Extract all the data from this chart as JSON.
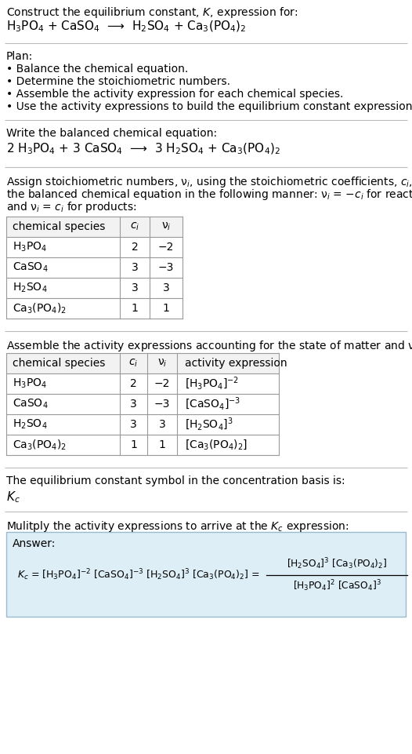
{
  "title_line1": "Construct the equilibrium constant, $K$, expression for:",
  "title_line2": "H$_3$PO$_4$ + CaSO$_4$  ⟶  H$_2$SO$_4$ + Ca$_3$(PO$_4$)$_2$",
  "plan_header": "Plan:",
  "plan_items": [
    "• Balance the chemical equation.",
    "• Determine the stoichiometric numbers.",
    "• Assemble the activity expression for each chemical species.",
    "• Use the activity expressions to build the equilibrium constant expression."
  ],
  "balanced_header": "Write the balanced chemical equation:",
  "balanced_eq": "2 H$_3$PO$_4$ + 3 CaSO$_4$  ⟶  3 H$_2$SO$_4$ + Ca$_3$(PO$_4$)$_2$",
  "stoich_header_parts": [
    "Assign stoichiometric numbers, ν$_i$, using the stoichiometric coefficients, $c_i$, from",
    "the balanced chemical equation in the following manner: ν$_i$ = −$c_i$ for reactants",
    "and ν$_i$ = $c_i$ for products:"
  ],
  "table1_headers": [
    "chemical species",
    "$c_i$",
    "ν$_i$"
  ],
  "table1_rows": [
    [
      "H$_3$PO$_4$",
      "2",
      "−2"
    ],
    [
      "CaSO$_4$",
      "3",
      "−3"
    ],
    [
      "H$_2$SO$_4$",
      "3",
      "3"
    ],
    [
      "Ca$_3$(PO$_4$)$_2$",
      "1",
      "1"
    ]
  ],
  "activity_header": "Assemble the activity expressions accounting for the state of matter and ν$_i$:",
  "table2_headers": [
    "chemical species",
    "$c_i$",
    "ν$_i$",
    "activity expression"
  ],
  "table2_rows": [
    [
      "H$_3$PO$_4$",
      "2",
      "−2",
      "[H$_3$PO$_4$]$^{-2}$"
    ],
    [
      "CaSO$_4$",
      "3",
      "−3",
      "[CaSO$_4$]$^{-3}$"
    ],
    [
      "H$_2$SO$_4$",
      "3",
      "3",
      "[H$_2$SO$_4$]$^3$"
    ],
    [
      "Ca$_3$(PO$_4$)$_2$",
      "1",
      "1",
      "[Ca$_3$(PO$_4$)$_2$]"
    ]
  ],
  "kc_header": "The equilibrium constant symbol in the concentration basis is:",
  "kc_symbol": "$K_c$",
  "multiply_header": "Mulitply the activity expressions to arrive at the $K_c$ expression:",
  "answer_label": "Answer:",
  "bg_color": "#ffffff",
  "table_header_bg": "#f2f2f2",
  "table_border_color": "#999999",
  "separator_color": "#bbbbbb",
  "answer_box_bg": "#ddeef6",
  "answer_box_border": "#99bbcc",
  "text_color": "#000000",
  "font_size": 10.0,
  "font_size_eq": 11.0,
  "font_size_table": 10.0
}
